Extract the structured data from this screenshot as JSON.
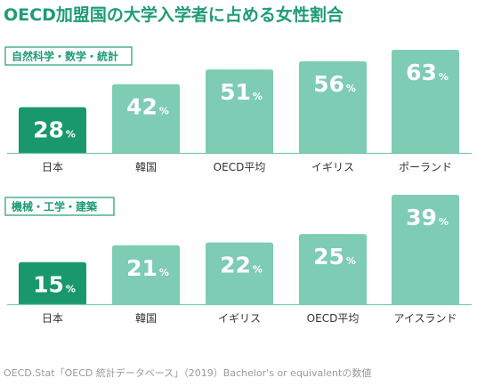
{
  "title": "OECD加盟国の大学入学者に占める女性割合",
  "source": "OECD.Stat「OECD 統計データベース」（2019）Bachelor's or equivalentの数値",
  "colors": {
    "accent": "#1f9c75",
    "highlight": "#19986d",
    "bar": "#7dccb3",
    "axis": "#7fc9b0"
  },
  "chart_data": [
    {
      "type": "bar",
      "title": "自然科学・数学・統計",
      "categories": [
        "日本",
        "韓国",
        "OECD平均",
        "イギリス",
        "ポーランド"
      ],
      "values": [
        28,
        42,
        51,
        56,
        63
      ],
      "unit": "%",
      "highlight_index": 0,
      "ylim": [
        0,
        63
      ],
      "grid": false
    },
    {
      "type": "bar",
      "title": "機械・工学・建築",
      "categories": [
        "日本",
        "韓国",
        "イギリス",
        "OECD平均",
        "アイスランド"
      ],
      "values": [
        15,
        21,
        22,
        25,
        39
      ],
      "unit": "%",
      "highlight_index": 0,
      "ylim": [
        0,
        39
      ],
      "grid": false
    }
  ]
}
